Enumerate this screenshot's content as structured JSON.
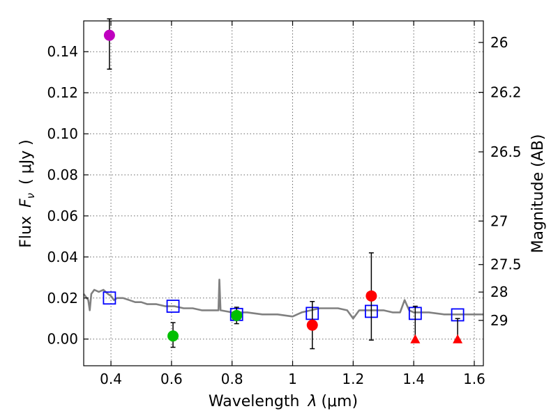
{
  "chart_data": {
    "type": "scatter",
    "xlabel_prefix": "Wavelength",
    "xlabel_symbol": "λ",
    "xlabel_unit": "(μm)",
    "ylabel_prefix": "Flux",
    "ylabel_symbol": "F",
    "ylabel_subscript": "ν",
    "ylabel_unit": "( μJy )",
    "y2label": "Magnitude (AB)",
    "xlim": [
      0.31,
      1.63
    ],
    "ylim": [
      -0.013,
      0.155
    ],
    "xticks": [
      0.4,
      0.6,
      0.8,
      1.0,
      1.2,
      1.4,
      1.6
    ],
    "xtick_labels": [
      "0.4",
      "0.6",
      "0.8",
      "1",
      "1.2",
      "1.4",
      "1.6"
    ],
    "yticks": [
      0.0,
      0.02,
      0.04,
      0.06,
      0.08,
      0.1,
      0.12,
      0.14
    ],
    "ytick_labels": [
      "0.00",
      "0.02",
      "0.04",
      "0.06",
      "0.08",
      "0.10",
      "0.12",
      "0.14"
    ],
    "mag_ticks": [
      {
        "label": "26",
        "flux": 0.1445
      },
      {
        "label": "26.2",
        "flux": 0.1202
      },
      {
        "label": "26.5",
        "flux": 0.0912
      },
      {
        "label": "27",
        "flux": 0.0575
      },
      {
        "label": "27.5",
        "flux": 0.0363
      },
      {
        "label": "28",
        "flux": 0.0229
      },
      {
        "label": "29",
        "flux": 0.0091
      }
    ],
    "colors": {
      "purple": "#bf00bf",
      "green": "#00bf00",
      "red": "#ff0000",
      "blue": "#0000ff",
      "model": "#808080",
      "errbar": "#000000"
    },
    "model_sed": [
      [
        0.31,
        0.022
      ],
      [
        0.325,
        0.019
      ],
      [
        0.33,
        0.014
      ],
      [
        0.335,
        0.022
      ],
      [
        0.345,
        0.024
      ],
      [
        0.36,
        0.023
      ],
      [
        0.375,
        0.024
      ],
      [
        0.39,
        0.022
      ],
      [
        0.4,
        0.021
      ],
      [
        0.41,
        0.019
      ],
      [
        0.42,
        0.02
      ],
      [
        0.44,
        0.02
      ],
      [
        0.46,
        0.019
      ],
      [
        0.48,
        0.018
      ],
      [
        0.5,
        0.018
      ],
      [
        0.52,
        0.017
      ],
      [
        0.55,
        0.017
      ],
      [
        0.58,
        0.016
      ],
      [
        0.61,
        0.016
      ],
      [
        0.64,
        0.015
      ],
      [
        0.67,
        0.015
      ],
      [
        0.7,
        0.014
      ],
      [
        0.73,
        0.014
      ],
      [
        0.755,
        0.014
      ],
      [
        0.758,
        0.029
      ],
      [
        0.762,
        0.014
      ],
      [
        0.8,
        0.013
      ],
      [
        0.85,
        0.013
      ],
      [
        0.9,
        0.012
      ],
      [
        0.95,
        0.012
      ],
      [
        1.0,
        0.011
      ],
      [
        1.03,
        0.013
      ],
      [
        1.06,
        0.014
      ],
      [
        1.09,
        0.015
      ],
      [
        1.12,
        0.015
      ],
      [
        1.15,
        0.015
      ],
      [
        1.18,
        0.014
      ],
      [
        1.2,
        0.01
      ],
      [
        1.22,
        0.014
      ],
      [
        1.26,
        0.014
      ],
      [
        1.3,
        0.014
      ],
      [
        1.33,
        0.013
      ],
      [
        1.355,
        0.013
      ],
      [
        1.37,
        0.019
      ],
      [
        1.385,
        0.014
      ],
      [
        1.4,
        0.013
      ],
      [
        1.45,
        0.013
      ],
      [
        1.5,
        0.012
      ],
      [
        1.55,
        0.012
      ],
      [
        1.6,
        0.012
      ],
      [
        1.63,
        0.012
      ]
    ],
    "model_squares": [
      {
        "x": 0.395,
        "y": 0.02
      },
      {
        "x": 0.605,
        "y": 0.016
      },
      {
        "x": 0.815,
        "y": 0.012
      },
      {
        "x": 1.065,
        "y": 0.0125
      },
      {
        "x": 1.26,
        "y": 0.0135
      },
      {
        "x": 1.405,
        "y": 0.0125
      },
      {
        "x": 1.545,
        "y": 0.0118
      }
    ],
    "observed": [
      {
        "x": 0.395,
        "y": 0.148,
        "err_low": 0.0165,
        "err_high": 0.008,
        "color": "purple",
        "marker": "circle"
      },
      {
        "x": 0.605,
        "y": 0.0015,
        "err_low": 0.0055,
        "err_high": 0.0065,
        "color": "green",
        "marker": "circle"
      },
      {
        "x": 0.815,
        "y": 0.0115,
        "err_low": 0.004,
        "err_high": 0.004,
        "color": "green",
        "marker": "circle"
      },
      {
        "x": 1.065,
        "y": 0.0068,
        "err_low": 0.0115,
        "err_high": 0.0115,
        "color": "red",
        "marker": "circle"
      },
      {
        "x": 1.26,
        "y": 0.021,
        "err_low": 0.0215,
        "err_high": 0.021,
        "color": "red",
        "marker": "circle"
      },
      {
        "x": 1.405,
        "y": 0.0,
        "err_low": 0.0,
        "err_high": 0.016,
        "color": "red",
        "marker": "triangle"
      },
      {
        "x": 1.545,
        "y": 0.0,
        "err_low": 0.0,
        "err_high": 0.01,
        "color": "red",
        "marker": "triangle"
      }
    ]
  }
}
